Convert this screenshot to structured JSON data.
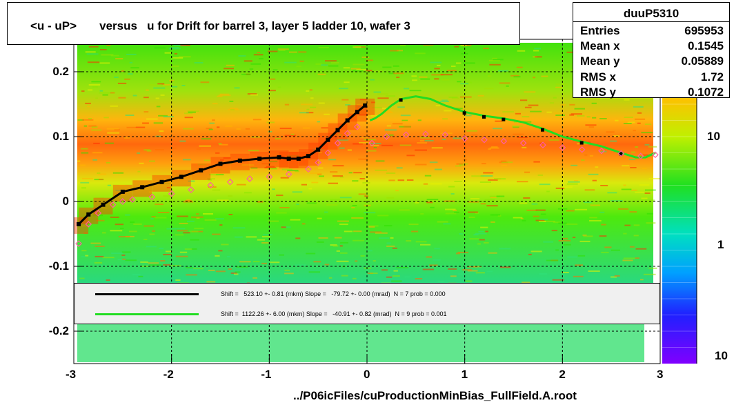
{
  "title": "<u - uP>       versus   u for Drift for barrel 3, layer 5 ladder 10, wafer 3",
  "stats": {
    "name": "duuP5310",
    "rows": [
      {
        "key": "Entries",
        "value": "695953"
      },
      {
        "key": "Mean x",
        "value": "0.1545"
      },
      {
        "key": "Mean y",
        "value": "0.05889"
      },
      {
        "key": "RMS x",
        "value": "1.72"
      },
      {
        "key": "RMS y",
        "value": "0.1072"
      }
    ]
  },
  "legend": {
    "black_fit": "Shift =   523.10 +- 0.81 (mkm) Slope =   -79.72 +- 0.00 (mrad)  N = 7 prob = 0.000",
    "green_fit": "Shift =  1122.26 +- 6.00 (mkm) Slope =   -40.91 +- 0.82 (mrad)  N = 9 prob = 0.001"
  },
  "footer": "../P06icFiles/cuProductionMinBias_FullField.A.root",
  "colors": {
    "black_fit": "#000000",
    "green_fit": "#22dd22",
    "profile": "#ff5fa0"
  },
  "chart_data": {
    "type": "heatmap",
    "title": "<u - uP>       versus   u for Drift for barrel 3, layer 5 ladder 10, wafer 3",
    "xlim": [
      -3,
      3
    ],
    "ylim": [
      -0.25,
      0.25
    ],
    "x_ticks": [
      -3,
      -2,
      -1,
      0,
      1,
      2,
      3
    ],
    "y_ticks": [
      -0.2,
      -0.1,
      0,
      0.1,
      0.2
    ],
    "x_tick_labels": [
      "-3",
      "-2",
      "-1",
      "0",
      "1",
      "2",
      "3"
    ],
    "y_tick_labels": [
      "-0.2",
      "-0.1",
      "0",
      "0.1",
      "0.2"
    ],
    "z_scale": "log",
    "z_tick_labels": [
      "10",
      "1",
      "10"
    ],
    "grid": true,
    "series": [
      {
        "kind": "black-fit",
        "x": [
          -2.95,
          -2.85,
          -2.7,
          -2.5,
          -2.3,
          -2.1,
          -1.9,
          -1.7,
          -1.5,
          -1.3,
          -1.1,
          -0.9,
          -0.8,
          -0.7,
          -0.6,
          -0.5,
          -0.4,
          -0.3,
          -0.2,
          -0.1,
          -0.02
        ],
        "y": [
          -0.035,
          -0.02,
          -0.005,
          0.015,
          0.022,
          0.03,
          0.038,
          0.048,
          0.058,
          0.063,
          0.066,
          0.068,
          0.066,
          0.066,
          0.07,
          0.08,
          0.095,
          0.11,
          0.125,
          0.138,
          0.148
        ]
      },
      {
        "kind": "green-fit",
        "x": [
          0.03,
          0.08,
          0.15,
          0.25,
          0.35,
          0.5,
          0.65,
          0.8,
          1.0,
          1.2,
          1.4,
          1.6,
          1.8,
          2.0,
          2.2,
          2.4,
          2.6,
          2.75,
          2.85,
          2.95
        ],
        "y": [
          0.125,
          0.128,
          0.135,
          0.148,
          0.158,
          0.162,
          0.158,
          0.148,
          0.138,
          0.132,
          0.128,
          0.122,
          0.112,
          0.1,
          0.092,
          0.085,
          0.075,
          0.068,
          0.068,
          0.075
        ]
      },
      {
        "kind": "profile-points",
        "x": [
          -2.95,
          -2.85,
          -2.75,
          -2.6,
          -2.5,
          -2.4,
          -2.2,
          -2.0,
          -1.8,
          -1.6,
          -1.4,
          -1.2,
          -1.0,
          -0.8,
          -0.6,
          -0.5,
          -0.4,
          -0.3,
          -0.2,
          -0.1,
          0.05,
          0.2,
          0.4,
          0.6,
          0.8,
          1.0,
          1.2,
          1.4,
          1.6,
          1.8,
          2.0,
          2.2,
          2.4,
          2.6,
          2.8,
          2.95
        ],
        "y": [
          -0.065,
          -0.035,
          -0.018,
          -0.005,
          0.0,
          0.003,
          0.007,
          0.012,
          0.018,
          0.025,
          0.03,
          0.035,
          0.038,
          0.042,
          0.05,
          0.06,
          0.075,
          0.09,
          0.105,
          0.115,
          0.09,
          0.1,
          0.103,
          0.104,
          0.103,
          0.097,
          0.095,
          0.093,
          0.09,
          0.087,
          0.083,
          0.08,
          0.078,
          0.074,
          0.07,
          0.072
        ]
      }
    ]
  }
}
